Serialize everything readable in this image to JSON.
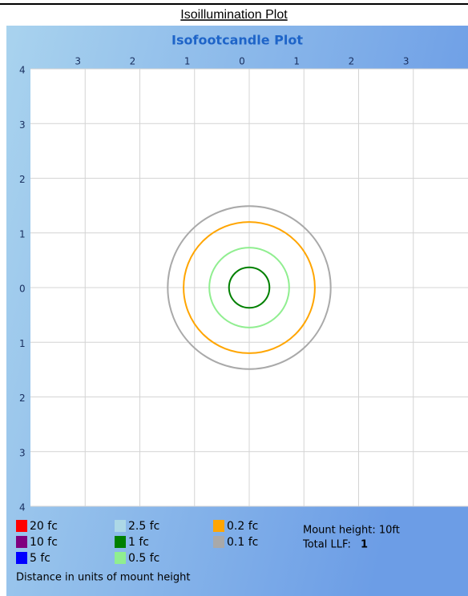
{
  "page_title": "Isoillumination Plot",
  "chart_data": {
    "type": "contour",
    "title": "Isofootcandle Plot",
    "xlim": [
      -4,
      4
    ],
    "ylim": [
      -4,
      4
    ],
    "xticks": [
      {
        "value": -3,
        "label": "3"
      },
      {
        "value": -2,
        "label": "2"
      },
      {
        "value": -1,
        "label": "1"
      },
      0,
      1,
      2,
      3
    ],
    "yticks": [
      4,
      3,
      2,
      1,
      0,
      {
        "value": -1,
        "label": "1"
      },
      {
        "value": -2,
        "label": "2"
      },
      {
        "value": -3,
        "label": "3"
      },
      {
        "value": -4,
        "label": "4"
      }
    ],
    "grid": true,
    "series": [
      {
        "name": "20 fc",
        "color": "#ff0000",
        "radius": null
      },
      {
        "name": "10 fc",
        "color": "#800080",
        "radius": null
      },
      {
        "name": "5 fc",
        "color": "#0000ff",
        "radius": null
      },
      {
        "name": "2.5 fc",
        "color": "#add8e6",
        "radius": null
      },
      {
        "name": "1 fc",
        "color": "#008000",
        "radius": 0.37
      },
      {
        "name": "0.5 fc",
        "color": "#90ee90",
        "radius": 0.73
      },
      {
        "name": "0.2 fc",
        "color": "#ffa500",
        "radius": 1.2
      },
      {
        "name": "0.1 fc",
        "color": "#a9a9a9",
        "radius": 1.49
      }
    ],
    "mount_height": "Mount height: 10ft",
    "llf_label": "Total LLF:",
    "llf": 1,
    "xlabel": "Distance in units of mount height"
  }
}
